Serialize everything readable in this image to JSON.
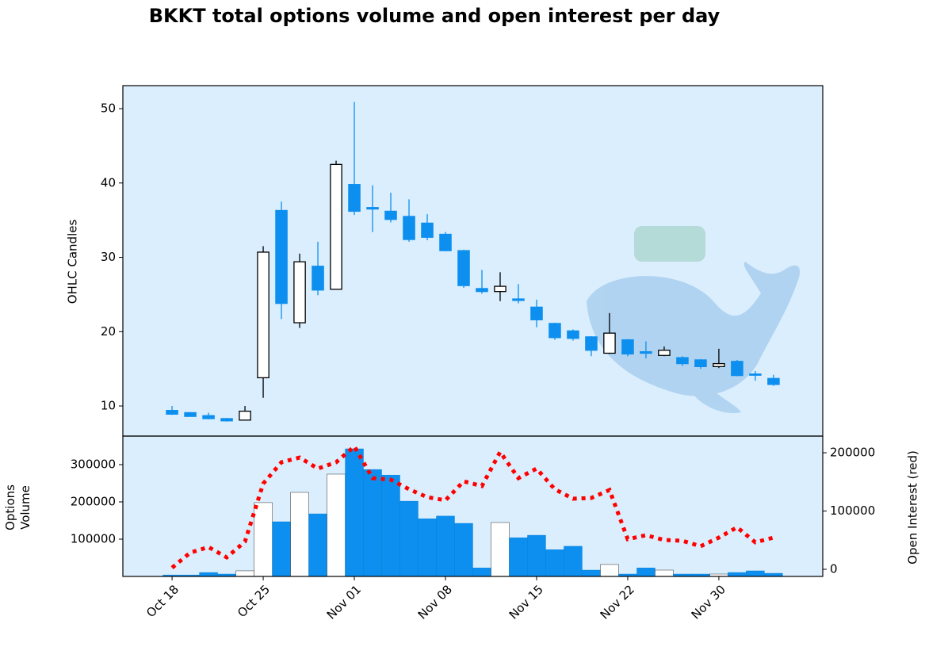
{
  "chart_data": {
    "type": "candlestick",
    "title": "BKKT total options volume and open interest per day",
    "categories": [
      "Oct 18",
      null,
      null,
      null,
      null,
      "Oct 25",
      null,
      null,
      null,
      null,
      "Nov 01",
      null,
      null,
      null,
      null,
      "Nov 08",
      null,
      null,
      null,
      null,
      "Nov 15",
      null,
      null,
      null,
      null,
      "Nov 22",
      null,
      null,
      null,
      null,
      "Nov 30",
      null,
      null,
      null
    ],
    "xlim": [
      -2.7,
      35.7
    ],
    "ylabel": "OHLC Candles",
    "ylim": [
      5.95,
      53.1
    ],
    "yticks": [
      10,
      20,
      30,
      40,
      50
    ],
    "up_color": "#ffffff",
    "down_color": "#0d8fef",
    "open": [
      9.4,
      9.1,
      8.7,
      8.3,
      8.1,
      13.8,
      36.3,
      21.2,
      28.8,
      25.7,
      39.8,
      36.7,
      36.2,
      35.5,
      34.6,
      33.1,
      30.9,
      25.8,
      25.4,
      24.4,
      23.3,
      21.1,
      20.1,
      19.3,
      17.1,
      18.9,
      17.3,
      16.8,
      16.5,
      16.2,
      15.3,
      16.0,
      14.3,
      13.7
    ],
    "high": [
      10.0,
      9.2,
      9.1,
      8.4,
      10.0,
      31.5,
      37.5,
      30.5,
      32.1,
      43.0,
      50.9,
      39.7,
      38.7,
      37.8,
      35.8,
      33.4,
      31.0,
      28.3,
      28.0,
      26.4,
      24.3,
      21.2,
      20.3,
      19.4,
      22.5,
      19.0,
      18.7,
      18.0,
      16.7,
      16.3,
      17.7,
      16.2,
      14.7,
      14.2
    ],
    "low": [
      8.8,
      8.6,
      8.2,
      7.9,
      8.1,
      11.1,
      21.7,
      20.5,
      24.9,
      25.7,
      35.7,
      33.4,
      34.7,
      32.1,
      32.3,
      30.8,
      25.9,
      25.1,
      24.1,
      23.8,
      20.6,
      18.9,
      18.8,
      16.7,
      17.0,
      16.7,
      16.4,
      16.7,
      15.4,
      15.0,
      15.1,
      14.0,
      13.4,
      12.7
    ],
    "close": [
      8.9,
      8.6,
      8.3,
      8.0,
      9.3,
      30.7,
      23.8,
      29.4,
      25.6,
      42.5,
      36.2,
      36.5,
      35.1,
      32.4,
      32.7,
      30.9,
      26.2,
      25.4,
      26.1,
      24.2,
      21.6,
      19.2,
      19.1,
      17.5,
      19.8,
      17.0,
      17.1,
      17.5,
      15.7,
      15.3,
      15.7,
      14.1,
      14.2,
      12.9
    ],
    "volume": {
      "label": "Options Volume",
      "ylim": [
        0,
        376600
      ],
      "yticks": [
        100000,
        200000,
        300000
      ],
      "values": [
        4000,
        4000,
        10600,
        6400,
        15000,
        198000,
        146800,
        225500,
        168000,
        274500,
        342500,
        287000,
        272000,
        202000,
        155000,
        162000,
        142500,
        23000,
        144700,
        104000,
        110600,
        72000,
        81000,
        17000,
        32000,
        6400,
        23000,
        17000,
        6400,
        6400,
        6400,
        10600,
        15000,
        8500
      ]
    },
    "open_interest": {
      "label": "Open Interest (red)",
      "color": "#ff0000",
      "y2lim": [
        -12250,
        228600
      ],
      "y2ticks": [
        0,
        100000,
        200000
      ],
      "values": [
        2700,
        28600,
        38100,
        20400,
        47600,
        147000,
        183700,
        191800,
        172800,
        183700,
        210900,
        156500,
        153700,
        137400,
        123800,
        118400,
        151000,
        142900,
        201400,
        156500,
        172800,
        137400,
        121100,
        122400,
        136100,
        51700,
        58500,
        50300,
        49000,
        39500,
        54400,
        72100,
        46300,
        54400
      ]
    }
  }
}
